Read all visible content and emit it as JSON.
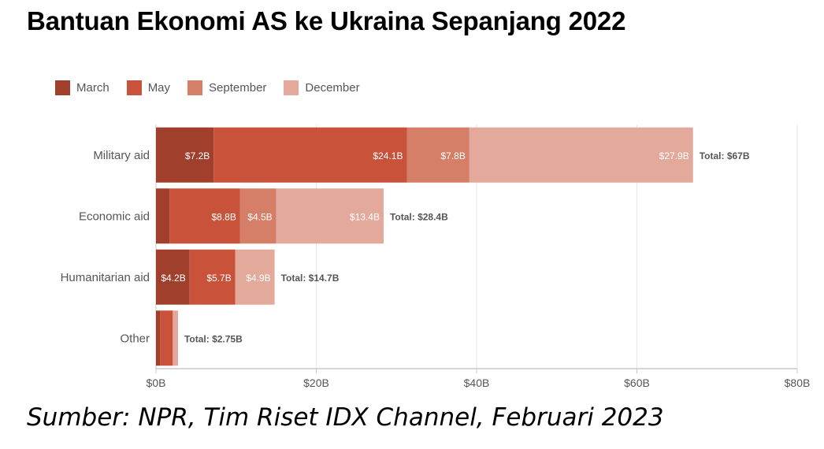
{
  "title": "Bantuan Ekonomi AS ke Ukraina Sepanjang 2022",
  "source": "Sumber: NPR, Tim Riset IDX Channel, Februari 2023",
  "legend": [
    {
      "label": "March",
      "color": "#a0402c"
    },
    {
      "label": "May",
      "color": "#c9533a"
    },
    {
      "label": "September",
      "color": "#d57e68"
    },
    {
      "label": "December",
      "color": "#e3a99a"
    }
  ],
  "chart_data": {
    "type": "bar",
    "orientation": "horizontal",
    "stacked": true,
    "categories": [
      "Military aid",
      "Economic aid",
      "Humanitarian aid",
      "Other"
    ],
    "series": [
      {
        "name": "March",
        "values": [
          7.2,
          1.7,
          4.2,
          0.5
        ],
        "labels": [
          "$7.2B",
          "",
          "$4.2B",
          ""
        ]
      },
      {
        "name": "May",
        "values": [
          24.1,
          8.8,
          5.7,
          1.6
        ],
        "labels": [
          "$24.1B",
          "$8.8B",
          "$5.7B",
          ""
        ]
      },
      {
        "name": "September",
        "values": [
          7.8,
          4.5,
          0.0,
          0.0
        ],
        "labels": [
          "$7.8B",
          "$4.5B",
          "",
          ""
        ]
      },
      {
        "name": "December",
        "values": [
          27.9,
          13.4,
          4.9,
          0.65
        ],
        "labels": [
          "$27.9B",
          "$13.4B",
          "$4.9B",
          ""
        ]
      }
    ],
    "totals": [
      "Total: $67B",
      "Total: $28.4B",
      "Total: $14.7B",
      "Total: $2.75B"
    ],
    "xlim": [
      0,
      80
    ],
    "xticks": [
      0,
      20,
      40,
      60,
      80
    ],
    "xtick_labels": [
      "$0B",
      "$20B",
      "$40B",
      "$60B",
      "$80B"
    ],
    "grid": true,
    "legend_position": "top-left"
  }
}
